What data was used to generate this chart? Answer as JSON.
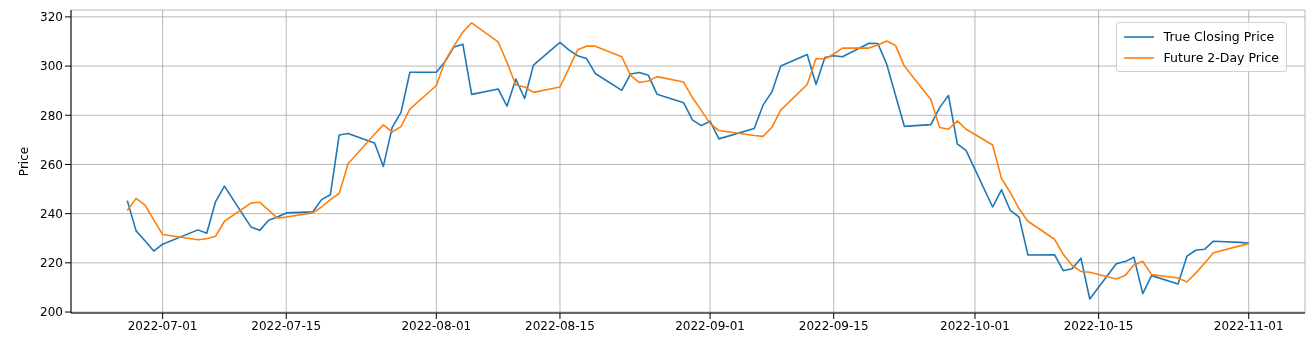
{
  "chart_data": {
    "type": "line",
    "ylabel": "Price",
    "x": [
      "2022-06-27",
      "2022-06-28",
      "2022-06-29",
      "2022-06-30",
      "2022-07-01",
      "2022-07-05",
      "2022-07-06",
      "2022-07-07",
      "2022-07-08",
      "2022-07-11",
      "2022-07-12",
      "2022-07-13",
      "2022-07-14",
      "2022-07-15",
      "2022-07-18",
      "2022-07-19",
      "2022-07-20",
      "2022-07-21",
      "2022-07-22",
      "2022-07-25",
      "2022-07-26",
      "2022-07-27",
      "2022-07-28",
      "2022-07-29",
      "2022-08-01",
      "2022-08-02",
      "2022-08-03",
      "2022-08-04",
      "2022-08-05",
      "2022-08-08",
      "2022-08-09",
      "2022-08-10",
      "2022-08-11",
      "2022-08-12",
      "2022-08-15",
      "2022-08-16",
      "2022-08-17",
      "2022-08-18",
      "2022-08-19",
      "2022-08-22",
      "2022-08-23",
      "2022-08-24",
      "2022-08-25",
      "2022-08-26",
      "2022-08-29",
      "2022-08-30",
      "2022-08-31",
      "2022-09-01",
      "2022-09-02",
      "2022-09-06",
      "2022-09-07",
      "2022-09-08",
      "2022-09-09",
      "2022-09-12",
      "2022-09-13",
      "2022-09-14",
      "2022-09-15",
      "2022-09-16",
      "2022-09-19",
      "2022-09-20",
      "2022-09-21",
      "2022-09-22",
      "2022-09-23",
      "2022-09-26",
      "2022-09-27",
      "2022-09-28",
      "2022-09-29",
      "2022-09-30",
      "2022-10-03",
      "2022-10-04",
      "2022-10-05",
      "2022-10-06",
      "2022-10-07",
      "2022-10-10",
      "2022-10-11",
      "2022-10-12",
      "2022-10-13",
      "2022-10-14",
      "2022-10-17",
      "2022-10-18",
      "2022-10-19",
      "2022-10-20",
      "2022-10-21",
      "2022-10-24",
      "2022-10-25",
      "2022-10-26",
      "2022-10-27",
      "2022-10-28",
      "2022-10-31",
      "2022-11-01"
    ],
    "series": [
      {
        "name": "True Closing Price",
        "color": "#1f77b4",
        "values": [
          245.3,
          233.0,
          229.0,
          224.8,
          227.6,
          233.4,
          232.0,
          244.9,
          251.2,
          234.6,
          233.2,
          237.3,
          238.6,
          240.3,
          240.7,
          245.7,
          247.7,
          272.0,
          272.6,
          268.7,
          259.2,
          275.1,
          281.2,
          297.5,
          297.5,
          301.9,
          307.8,
          308.9,
          288.5,
          290.7,
          283.7,
          294.7,
          286.8,
          300.4,
          309.6,
          306.6,
          304.2,
          303.1,
          297.0,
          290.1,
          296.8,
          297.4,
          296.3,
          288.5,
          285.1,
          278.1,
          275.8,
          277.6,
          270.4,
          274.6,
          284.1,
          289.5,
          300.0,
          304.7,
          292.5,
          303.5,
          304.2,
          303.8,
          309.3,
          309.2,
          300.8,
          288.1,
          275.5,
          276.2,
          283.1,
          288.1,
          268.4,
          265.6,
          242.7,
          249.7,
          241.3,
          238.6,
          223.2,
          223.3,
          216.8,
          217.6,
          221.9,
          205.3,
          219.6,
          220.5,
          222.3,
          207.5,
          214.8,
          211.4,
          222.7,
          225.1,
          225.5,
          228.8,
          228.3,
          228.0
        ]
      },
      {
        "name": "Future 2-Day Price",
        "color": "#ff7f0e",
        "values": [
          241.3,
          246.2,
          243.5,
          237.5,
          231.5,
          229.4,
          229.8,
          230.8,
          236.9,
          244.3,
          244.6,
          241.4,
          238.2,
          238.6,
          240.3,
          242.7,
          245.7,
          248.2,
          260.3,
          272.3,
          276.1,
          273.2,
          275.4,
          282.5,
          292.1,
          302.2,
          308.2,
          313.8,
          317.6,
          309.8,
          301.5,
          292.3,
          291.5,
          289.3,
          291.5,
          299.0,
          306.6,
          308.1,
          308.1,
          303.8,
          296.2,
          293.3,
          293.9,
          295.7,
          293.5,
          287.2,
          282.0,
          276.7,
          273.8,
          271.8,
          271.4,
          275.1,
          282.1,
          292.5,
          303.1,
          302.9,
          304.9,
          307.3,
          307.3,
          308.6,
          310.2,
          308.4,
          300.0,
          286.4,
          275.0,
          274.3,
          277.7,
          274.3,
          267.9,
          254.3,
          248.6,
          241.9,
          236.9,
          229.6,
          223.5,
          218.9,
          216.5,
          216.2,
          213.4,
          214.8,
          219.1,
          220.6,
          215.2,
          213.8,
          212.2,
          215.8,
          219.8,
          224.1,
          226.9,
          227.8
        ]
      }
    ],
    "xlim": [
      "2022-06-20T15:00",
      "2022-11-07T09:00"
    ],
    "xticks": [
      "2022-07-01",
      "2022-07-15",
      "2022-08-01",
      "2022-08-15",
      "2022-09-01",
      "2022-09-15",
      "2022-10-01",
      "2022-10-15",
      "2022-11-01"
    ],
    "ylim": [
      199.6,
      322.8
    ],
    "yticks": [
      200,
      220,
      240,
      260,
      280,
      300,
      320
    ],
    "grid": true,
    "legend": "top right",
    "marker": "none",
    "line_style": "solid"
  }
}
